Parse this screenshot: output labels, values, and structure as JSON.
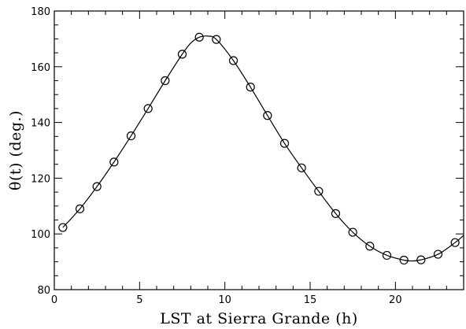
{
  "chart_data": {
    "type": "scatter",
    "title": "",
    "xlabel": "LST at Sierra Grande (h)",
    "ylabel": "θ(t) (deg.)",
    "xlim": [
      0,
      24
    ],
    "ylim": [
      80,
      180
    ],
    "x_ticks": [
      0,
      5,
      10,
      15,
      20
    ],
    "y_ticks": [
      80,
      100,
      120,
      140,
      160,
      180
    ],
    "x_minor_step": 1,
    "y_minor_step": 5,
    "grid": false,
    "series": [
      {
        "marker": "open-circle",
        "x": [
          0.5,
          1.5,
          2.5,
          3.5,
          4.5,
          5.5,
          6.5,
          7.5,
          8.5,
          9.5,
          10.5,
          11.5,
          12.5,
          13.5,
          14.5,
          15.5,
          16.5,
          17.5,
          18.5,
          19.5,
          20.5,
          21.5,
          22.5,
          23.5
        ],
        "y": [
          102.3,
          109.0,
          117.0,
          125.8,
          135.2,
          145.0,
          155.0,
          164.5,
          170.6,
          169.8,
          162.2,
          152.7,
          142.5,
          132.5,
          123.7,
          115.3,
          107.3,
          100.6,
          95.6,
          92.3,
          90.6,
          90.7,
          92.7,
          96.9
        ]
      },
      {
        "marker": "line",
        "x": [
          0.5,
          1.5,
          2.5,
          3.5,
          4.5,
          5.5,
          6.5,
          7.5,
          8.0,
          8.5,
          9.0,
          9.5,
          10.5,
          11.5,
          12.5,
          13.5,
          14.5,
          15.5,
          16.5,
          17.5,
          18.5,
          19.5,
          20.5,
          21.0,
          21.5,
          22.5,
          23.5,
          24.0
        ],
        "y": [
          102.3,
          109.0,
          117.0,
          125.8,
          135.2,
          145.0,
          155.0,
          164.5,
          168.5,
          170.6,
          171.0,
          169.8,
          162.2,
          152.7,
          142.5,
          132.5,
          123.7,
          115.3,
          107.3,
          100.6,
          95.6,
          92.3,
          90.6,
          90.3,
          90.7,
          92.7,
          96.9,
          99.5
        ]
      }
    ]
  }
}
